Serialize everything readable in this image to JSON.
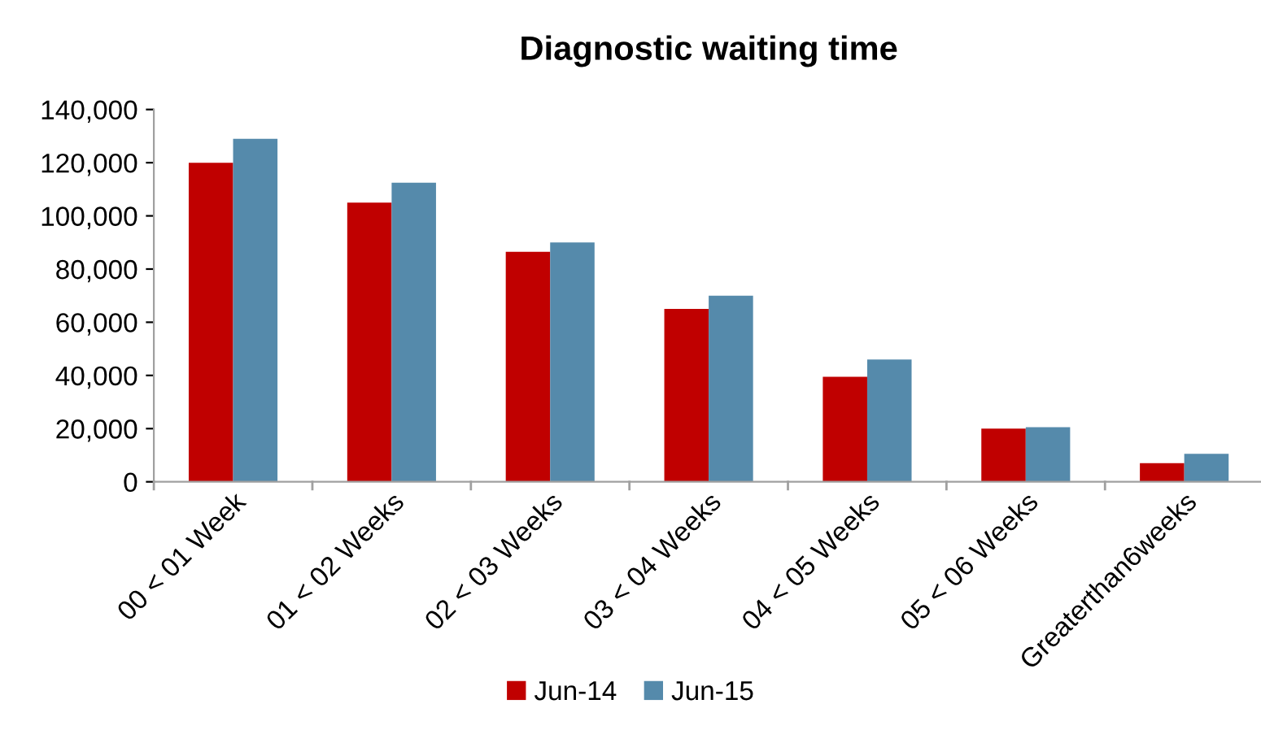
{
  "chart_data": {
    "type": "bar",
    "title": "Diagnostic waiting time",
    "categories": [
      "00 < 01 Week",
      "01 < 02 Weeks",
      "02 < 03 Weeks",
      "03 < 04 Weeks",
      "04 < 05 Weeks",
      "05 < 06 Weeks",
      "Greaterthan6weeks"
    ],
    "series": [
      {
        "name": "Jun-14",
        "color": "#c00000",
        "values": [
          120000,
          105000,
          86500,
          65000,
          39500,
          20000,
          7000
        ]
      },
      {
        "name": "Jun-15",
        "color": "#558aab",
        "values": [
          129000,
          112500,
          90000,
          70000,
          46000,
          20500,
          10500
        ]
      }
    ],
    "ylim": [
      0,
      140000
    ],
    "yticks": [
      {
        "value": 0,
        "label": "0"
      },
      {
        "value": 20000,
        "label": "20,000"
      },
      {
        "value": 40000,
        "label": "40,000"
      },
      {
        "value": 60000,
        "label": "60,000"
      },
      {
        "value": 80000,
        "label": "80,000"
      },
      {
        "value": 100000,
        "label": "100,000"
      },
      {
        "value": 120000,
        "label": "120,000"
      },
      {
        "value": 140000,
        "label": "140,000"
      }
    ],
    "grid": false,
    "legend": "bottom"
  }
}
